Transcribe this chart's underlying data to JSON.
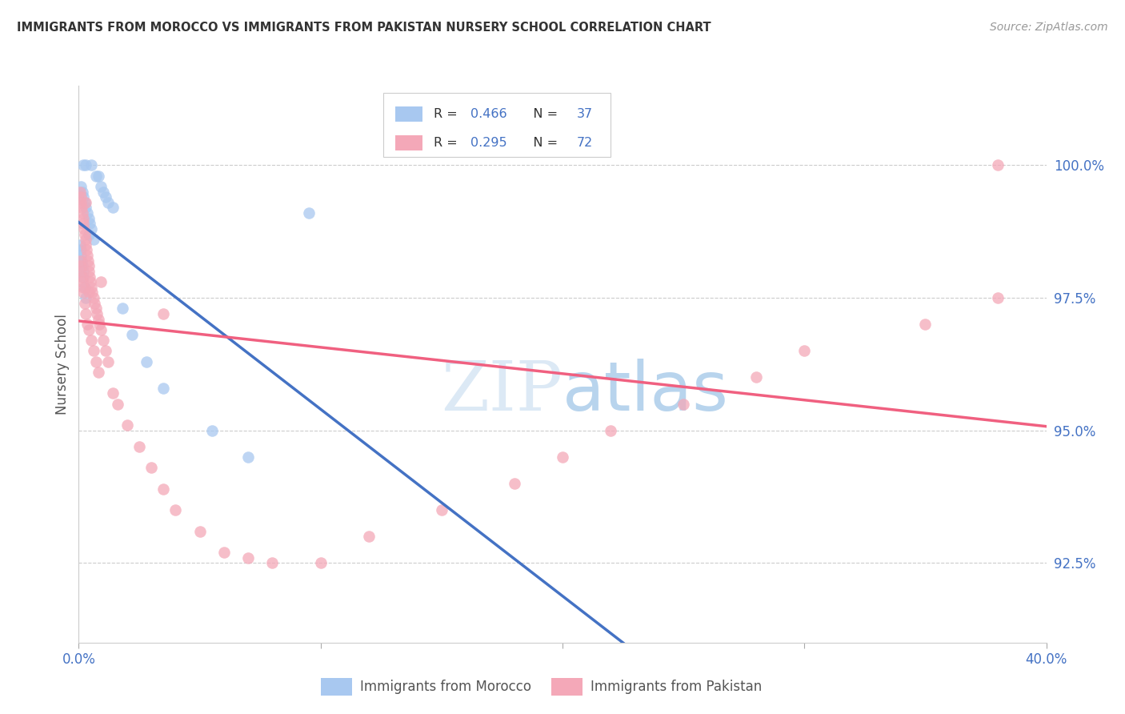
{
  "title": "IMMIGRANTS FROM MOROCCO VS IMMIGRANTS FROM PAKISTAN NURSERY SCHOOL CORRELATION CHART",
  "source_text": "Source: ZipAtlas.com",
  "ylabel": "Nursery School",
  "morocco_R": 0.466,
  "morocco_N": 37,
  "pakistan_R": 0.295,
  "pakistan_N": 72,
  "legend_label_morocco": "Immigrants from Morocco",
  "legend_label_pakistan": "Immigrants from Pakistan",
  "morocco_color": "#A8C8F0",
  "pakistan_color": "#F4A8B8",
  "morocco_line_color": "#4472C4",
  "pakistan_line_color": "#F06080",
  "xlim": [
    0.0,
    40.0
  ],
  "ylim": [
    91.0,
    101.5
  ],
  "yticks": [
    92.5,
    95.0,
    97.5,
    100.0
  ],
  "ytick_labels": [
    "92.5%",
    "95.0%",
    "97.5%",
    "100.0%"
  ],
  "watermark_text": "ZIPatlas",
  "morocco_x": [
    0.2,
    0.3,
    0.5,
    0.7,
    0.8,
    0.9,
    1.0,
    1.1,
    1.2,
    1.4,
    0.1,
    0.15,
    0.2,
    0.25,
    0.3,
    0.35,
    0.4,
    0.45,
    0.5,
    0.6,
    0.05,
    0.08,
    0.1,
    0.12,
    0.15,
    0.18,
    0.2,
    0.25,
    0.3,
    1.8,
    2.2,
    2.8,
    3.5,
    5.5,
    7.0,
    9.5,
    0.4
  ],
  "morocco_y": [
    100.0,
    100.0,
    100.0,
    99.8,
    99.8,
    99.6,
    99.5,
    99.4,
    99.3,
    99.2,
    99.6,
    99.5,
    99.4,
    99.3,
    99.2,
    99.1,
    99.0,
    98.9,
    98.8,
    98.6,
    98.5,
    98.4,
    98.3,
    98.2,
    98.1,
    98.0,
    97.9,
    97.7,
    97.5,
    97.3,
    96.8,
    96.3,
    95.8,
    95.0,
    94.5,
    99.1,
    98.7
  ],
  "pakistan_x": [
    0.05,
    0.08,
    0.1,
    0.12,
    0.15,
    0.18,
    0.2,
    0.22,
    0.25,
    0.28,
    0.3,
    0.32,
    0.35,
    0.38,
    0.4,
    0.42,
    0.45,
    0.48,
    0.5,
    0.55,
    0.6,
    0.65,
    0.7,
    0.75,
    0.8,
    0.85,
    0.9,
    1.0,
    1.1,
    1.2,
    0.05,
    0.08,
    0.1,
    0.12,
    0.15,
    0.18,
    0.2,
    0.25,
    0.3,
    0.35,
    0.4,
    0.5,
    0.6,
    0.7,
    0.8,
    1.4,
    1.6,
    2.0,
    2.5,
    3.0,
    3.5,
    4.0,
    5.0,
    6.0,
    7.0,
    8.0,
    10.0,
    12.0,
    15.0,
    18.0,
    20.0,
    22.0,
    25.0,
    28.0,
    30.0,
    35.0,
    38.0,
    3.5,
    0.9,
    0.3,
    0.4,
    38.0
  ],
  "pakistan_y": [
    99.5,
    99.4,
    99.3,
    99.2,
    99.1,
    99.0,
    98.9,
    98.8,
    98.7,
    98.6,
    98.5,
    98.4,
    98.3,
    98.2,
    98.1,
    98.0,
    97.9,
    97.8,
    97.7,
    97.6,
    97.5,
    97.4,
    97.3,
    97.2,
    97.1,
    97.0,
    96.9,
    96.7,
    96.5,
    96.3,
    98.2,
    98.1,
    98.0,
    97.9,
    97.8,
    97.7,
    97.6,
    97.4,
    97.2,
    97.0,
    96.9,
    96.7,
    96.5,
    96.3,
    96.1,
    95.7,
    95.5,
    95.1,
    94.7,
    94.3,
    93.9,
    93.5,
    93.1,
    92.7,
    92.6,
    92.5,
    92.5,
    93.0,
    93.5,
    94.0,
    94.5,
    95.0,
    95.5,
    96.0,
    96.5,
    97.0,
    97.5,
    97.2,
    97.8,
    99.3,
    97.6,
    100.0
  ]
}
